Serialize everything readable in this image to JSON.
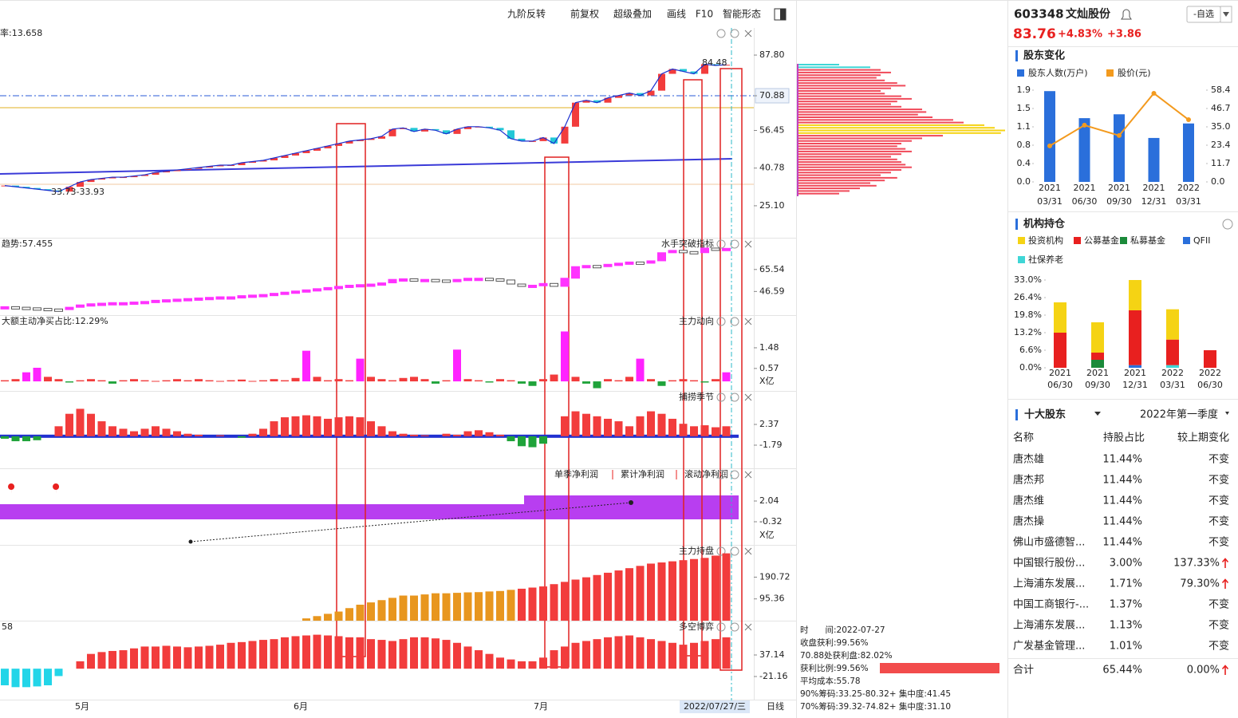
{
  "toolbar": [
    "九阶反转",
    "前复权",
    "超级叠加",
    "画线",
    "F10",
    "智能形态"
  ],
  "main_chart": {
    "type": "candlestick",
    "label": "率:13.658",
    "annotations": [
      "84.48",
      "33.73-33.93"
    ],
    "closes": [
      33.5,
      33,
      32.5,
      32,
      31.5,
      31,
      33,
      35,
      36,
      36.5,
      37,
      37,
      37.5,
      38,
      39,
      39.5,
      40,
      40.5,
      41,
      41.5,
      42,
      42,
      43,
      43.5,
      44,
      45,
      46,
      47,
      48,
      49,
      50,
      51,
      52,
      52.5,
      53,
      54,
      57,
      57.5,
      56,
      57,
      56.5,
      55,
      57,
      58,
      58,
      57.5,
      56.5,
      53,
      52,
      52,
      53.5,
      51,
      58,
      68,
      69,
      68,
      70,
      71,
      72,
      71,
      73,
      80,
      82,
      81,
      80,
      84,
      83.5,
      83.76
    ],
    "ylim": [
      11.8,
      99.1
    ],
    "yticks": [
      {
        "value": 87.8,
        "label": "87.80"
      },
      70.88,
      56.45,
      40.78,
      {
        "value": 25.1,
        "label": "25.10"
      }
    ]
  },
  "indicator_panels": [
    {
      "type": "candlestick",
      "title": "水手突破指标",
      "label": "趋势:57.455",
      "ylim": [
        26.2,
        92.9
      ],
      "yticks": [
        65.54,
        46.59
      ]
    },
    {
      "type": "bar",
      "title": "主力动向",
      "label": "大额主动净买占比:12.29%",
      "unit": "X亿",
      "ylim": [
        -0.42,
        2.92
      ],
      "yticks": [
        1.48,
        0.57
      ],
      "values": [
        0.05,
        0.1,
        0.4,
        0.6,
        0.2,
        0.1,
        -0.05,
        0.05,
        0.1,
        0.05,
        -0.1,
        0.05,
        0.1,
        0.05,
        0.02,
        0.05,
        0.1,
        0.05,
        0.1,
        0.05,
        0.02,
        0.05,
        0.08,
        0.02,
        0.05,
        0.1,
        0.05,
        0.15,
        1.35,
        0.2,
        0.05,
        0.1,
        0.05,
        1.0,
        0.2,
        0.1,
        0.05,
        0.15,
        0.2,
        0.1,
        -0.1,
        0.05,
        1.4,
        0.1,
        0.05,
        -0.05,
        0.1,
        0.05,
        -0.1,
        -0.2,
        0.1,
        0.3,
        2.2,
        0.2,
        -0.1,
        -0.3,
        0.1,
        0.05,
        0.2,
        1.0,
        0.1,
        -0.2,
        0.05,
        0.1,
        0.05,
        -0.05,
        0.1,
        0.4
      ]
    },
    {
      "type": "bar",
      "title": "捕捞季节",
      "ylim": [
        -6.43,
        9.09
      ],
      "yticks": [
        2.37,
        -1.79
      ],
      "values": [
        -0.5,
        -1,
        -1,
        -0.8,
        0,
        2,
        4.5,
        5.5,
        4.5,
        3,
        2,
        1.5,
        1,
        1.5,
        2,
        1.5,
        1,
        0.5,
        0.3,
        0,
        0.2,
        0,
        -0.3,
        0.5,
        1.5,
        3,
        3.8,
        4,
        4.2,
        4,
        3.5,
        3.8,
        4,
        3.8,
        3,
        2,
        1,
        0.5,
        0.3,
        0.2,
        0,
        0.5,
        0.3,
        1,
        1.2,
        0.8,
        0.3,
        -1,
        -2,
        -2.2,
        -1.5,
        0,
        4,
        5,
        4.5,
        4,
        3.5,
        3,
        2,
        4,
        5,
        4.5,
        3.5,
        2.5,
        2,
        2.2,
        1.8,
        2
      ]
    },
    {
      "type": "band",
      "legend": [
        "单季净利润",
        "累计净利润",
        "滚动净利润"
      ],
      "unit": "X亿",
      "ylim": [
        -2.95,
        5.76
      ],
      "yticks": [
        2.04,
        -0.32
      ]
    },
    {
      "type": "bar",
      "title": "主力持盘",
      "ylim": [
        0,
        332
      ],
      "yticks": [
        190.72,
        95.36
      ],
      "values": [
        0,
        0,
        0,
        0,
        0,
        0,
        0,
        0,
        0,
        0,
        0,
        0,
        0,
        0,
        0,
        0,
        0,
        0,
        0,
        0,
        0,
        0,
        0,
        0,
        0,
        0,
        0,
        0,
        10,
        20,
        30,
        40,
        55,
        70,
        80,
        90,
        100,
        110,
        110,
        115,
        120,
        120,
        122,
        124,
        125,
        128,
        130,
        135,
        140,
        145,
        150,
        160,
        170,
        180,
        190,
        200,
        210,
        220,
        230,
        240,
        250,
        255,
        260,
        265,
        270,
        275,
        285,
        295
      ]
    },
    {
      "type": "bar",
      "title": "多空博弈",
      "label": "58",
      "ylim": [
        -86,
        130
      ],
      "yticks": [
        37.14,
        -21.16
      ],
      "values": [
        -45,
        -50,
        -50,
        -48,
        -45,
        -20,
        0,
        20,
        40,
        45,
        48,
        50,
        55,
        60,
        60,
        62,
        60,
        58,
        60,
        62,
        65,
        70,
        72,
        75,
        78,
        80,
        85,
        88,
        90,
        92,
        90,
        88,
        85,
        85,
        80,
        78,
        75,
        80,
        85,
        85,
        82,
        78,
        70,
        60,
        50,
        40,
        30,
        25,
        20,
        20,
        30,
        50,
        60,
        70,
        75,
        80,
        85,
        88,
        90,
        85,
        80,
        75,
        70,
        65,
        70,
        75,
        80,
        85
      ]
    }
  ],
  "time_axis": {
    "labels": [
      "5月",
      "6月",
      "7月"
    ],
    "cursor_date": "2022/07/27/三",
    "period": "日线"
  },
  "chip_distribution": [
    20,
    35,
    40,
    45,
    40,
    38,
    42,
    48,
    52,
    45,
    40,
    42,
    50,
    55,
    48,
    45,
    50,
    60,
    62,
    58,
    65,
    75,
    80,
    90,
    95,
    100,
    98,
    70,
    60,
    55,
    50,
    48,
    52,
    55,
    50,
    45,
    48,
    50,
    52,
    55,
    50,
    45,
    40,
    48,
    42,
    35,
    38,
    30,
    25,
    20
  ],
  "chip_info": [
    "时　　间:2022-07-27",
    "收盘获利:99.56%",
    "70.88处获利盘:82.02%",
    "获利比例:99.56%",
    "平均成本:55.78",
    "90%筹码:33.25-80.32+ 集中度:41.45",
    "70%筹码:39.32-74.82+ 集中度:31.10"
  ],
  "quote": {
    "code": "603348",
    "name": "文灿股份",
    "price": "83.76",
    "change_pct": "+4.83%",
    "change": "+3.86",
    "watch_button": "-自选"
  },
  "shareholder_chart": {
    "type": "bar-line",
    "title": "股东变化",
    "category_years": [
      "2021",
      "2021",
      "2021",
      "2021",
      "2022"
    ],
    "category_dates": [
      "03/31",
      "06/30",
      "09/30",
      "12/31",
      "03/31"
    ],
    "series": [
      {
        "name": "股东人数(万户)",
        "color": "#2a6fdb",
        "values": [
          1.88,
          1.32,
          1.4,
          0.91,
          1.21
        ]
      },
      {
        "name": "股价(元)",
        "color": "#f39a1e",
        "axis": "y2",
        "values": [
          22.9,
          36.1,
          29.5,
          56.4,
          39.6
        ]
      }
    ],
    "ylim": [
      0,
      1.9
    ],
    "yticks": [
      1.9,
      {
        "value": 1.52,
        "label": "1.5"
      },
      {
        "value": 1.14,
        "label": "1.1"
      },
      {
        "value": 0.76,
        "label": "0.8"
      },
      {
        "value": 0.38,
        "label": "0.4"
      },
      {
        "value": 0,
        "label": "0.0"
      }
    ],
    "y2lim": [
      0,
      58.4
    ],
    "y2ticks": [
      58.4,
      {
        "value": 46.72,
        "label": "46.7"
      },
      {
        "value": 35.04,
        "label": "35.0"
      },
      {
        "value": 23.36,
        "label": "23.4"
      },
      {
        "value": 11.68,
        "label": "11.7"
      },
      {
        "value": 0,
        "label": "0.0"
      }
    ]
  },
  "institution_chart": {
    "type": "stacked-bar",
    "title": "机构持仓",
    "category_years": [
      "2021",
      "2021",
      "2021",
      "2022",
      "2022"
    ],
    "category_dates": [
      "06/30",
      "09/30",
      "12/31",
      "03/31",
      "06/30"
    ],
    "series": [
      {
        "name": "投资机构",
        "color": "#f5d314",
        "values": [
          11.4,
          11.4,
          11.4,
          11.4,
          0
        ]
      },
      {
        "name": "公募基金",
        "color": "#e8201f",
        "values": [
          13.2,
          2.7,
          20.6,
          9.6,
          6.6
        ]
      },
      {
        "name": "私募基金",
        "color": "#1b8a3a",
        "values": [
          0,
          3.0,
          0,
          0,
          0
        ]
      },
      {
        "name": "QFII",
        "color": "#2a6fdb",
        "values": [
          0,
          0,
          1.0,
          0,
          0
        ]
      },
      {
        "name": "社保养老",
        "color": "#3fd6d6",
        "values": [
          0,
          0,
          0,
          1.0,
          0
        ]
      }
    ],
    "ylim": [
      0,
      33
    ],
    "yticks": [
      {
        "value": 33,
        "label": "33.0%"
      },
      {
        "value": 26.4,
        "label": "26.4%"
      },
      {
        "value": 19.8,
        "label": "19.8%"
      },
      {
        "value": 13.2,
        "label": "13.2%"
      },
      {
        "value": 6.6,
        "label": "6.6%"
      },
      {
        "value": 0,
        "label": "0.0%"
      }
    ]
  },
  "top_holders": {
    "title": "十大股东",
    "period": "2022年第一季度",
    "columns": [
      "名称",
      "持股占比",
      "较上期变化"
    ],
    "rows": [
      [
        "唐杰雄",
        "11.44%",
        "不变"
      ],
      [
        "唐杰邦",
        "11.44%",
        "不变"
      ],
      [
        "唐杰维",
        "11.44%",
        "不变"
      ],
      [
        "唐杰操",
        "11.44%",
        "不变"
      ],
      [
        "佛山市盛德智...",
        "11.44%",
        "不变"
      ],
      [
        "中国银行股份...",
        "3.00%",
        "137.33%"
      ],
      [
        "上海浦东发展...",
        "1.71%",
        "79.30%"
      ],
      [
        "中国工商银行-...",
        "1.37%",
        "不变"
      ],
      [
        "上海浦东发展...",
        "1.13%",
        "不变"
      ],
      [
        "广发基金管理...",
        "1.01%",
        "不变"
      ]
    ],
    "total": [
      "合计",
      "65.44%",
      "0.00%"
    ]
  }
}
